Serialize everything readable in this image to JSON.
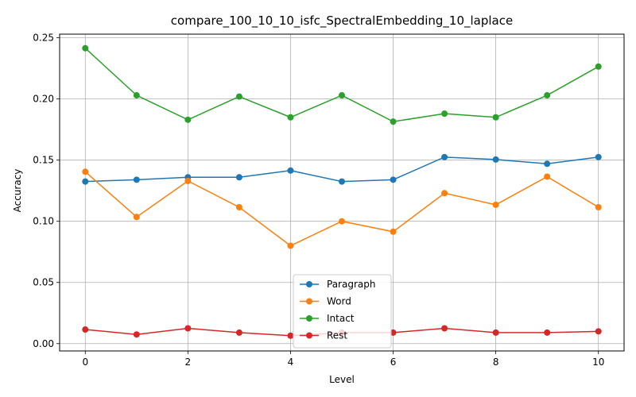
{
  "chart_data": {
    "type": "line",
    "title": "compare_100_10_10_isfc_SpectralEmbedding_10_laplace",
    "xlabel": "Level",
    "ylabel": "Accuracy",
    "xlim": [
      -0.5,
      10.5
    ],
    "ylim": [
      -0.006,
      0.253
    ],
    "x_ticks": [
      0,
      2,
      4,
      6,
      8,
      10
    ],
    "y_ticks": [
      0.0,
      0.05,
      0.1,
      0.15,
      0.2,
      0.25
    ],
    "y_tick_labels": [
      "0.00",
      "0.05",
      "0.10",
      "0.15",
      "0.20",
      "0.25"
    ],
    "grid": true,
    "legend_position": "lower-center",
    "x": [
      0,
      1,
      2,
      3,
      4,
      5,
      6,
      7,
      8,
      9,
      10
    ],
    "series": [
      {
        "name": "Paragraph",
        "color": "#1f77b4",
        "values": [
          0.1325,
          0.134,
          0.136,
          0.136,
          0.1415,
          0.1325,
          0.134,
          0.1525,
          0.1505,
          0.147,
          0.1525
        ]
      },
      {
        "name": "Word",
        "color": "#ff7f0e",
        "values": [
          0.1405,
          0.1035,
          0.133,
          0.1115,
          0.08,
          0.1,
          0.0915,
          0.123,
          0.1135,
          0.1365,
          0.1115
        ]
      },
      {
        "name": "Intact",
        "color": "#2ca02c",
        "values": [
          0.2415,
          0.203,
          0.183,
          0.202,
          0.185,
          0.203,
          0.1815,
          0.188,
          0.185,
          0.203,
          0.2265
        ]
      },
      {
        "name": "Rest",
        "color": "#d62728",
        "values": [
          0.0115,
          0.0075,
          0.0125,
          0.009,
          0.0065,
          0.009,
          0.009,
          0.0125,
          0.009,
          0.009,
          0.01
        ]
      }
    ]
  }
}
